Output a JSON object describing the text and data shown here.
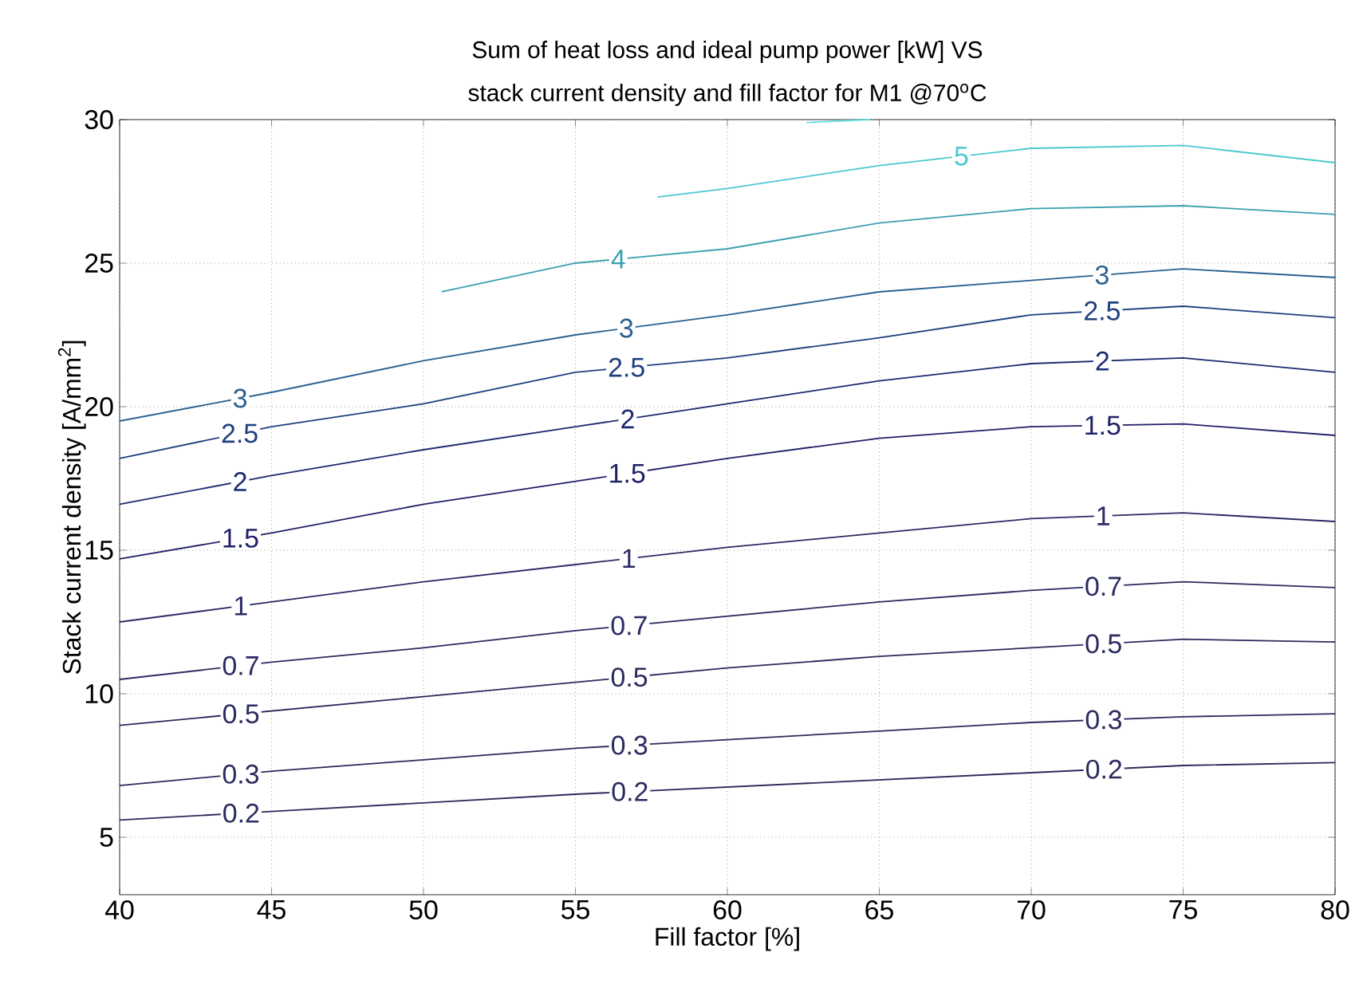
{
  "chart_data": {
    "type": "line",
    "title": "Sum of heat loss and ideal pump power [kW] VS",
    "subtitle": "stack current density and fill factor for M1 @70$^{o}$C",
    "xlabel": "Fill factor [%]",
    "ylabel": "Stack current density [A/mm$^{2}$]",
    "xlim": [
      40,
      80
    ],
    "ylim": [
      3,
      30
    ],
    "xticks": [
      40,
      45,
      50,
      55,
      60,
      65,
      70,
      75,
      80
    ],
    "yticks": [
      5,
      10,
      15,
      20,
      25,
      30
    ],
    "grid": true,
    "marker": "none",
    "line_style": "solid",
    "x": [
      40,
      45,
      50,
      55,
      60,
      65,
      70,
      75,
      80
    ],
    "series": [
      {
        "name": "0.2",
        "color": "#2b2b5e",
        "values": [
          5.6,
          5.9,
          6.2,
          6.5,
          6.75,
          7.0,
          7.25,
          7.5,
          7.6
        ]
      },
      {
        "name": "0.3",
        "color": "#2b2b5e",
        "values": [
          6.8,
          7.3,
          7.7,
          8.1,
          8.4,
          8.7,
          9.0,
          9.2,
          9.3
        ]
      },
      {
        "name": "0.5",
        "color": "#2b2b60",
        "values": [
          8.9,
          9.4,
          9.9,
          10.4,
          10.9,
          11.3,
          11.6,
          11.9,
          11.8
        ]
      },
      {
        "name": "0.7",
        "color": "#2b2b62",
        "values": [
          10.5,
          11.1,
          11.6,
          12.2,
          12.7,
          13.2,
          13.6,
          13.9,
          13.7
        ]
      },
      {
        "name": "1",
        "color": "#2a2a66",
        "values": [
          12.5,
          13.2,
          13.9,
          14.5,
          15.1,
          15.6,
          16.1,
          16.3,
          16.0
        ]
      },
      {
        "name": "1.5",
        "color": "#202068",
        "values": [
          14.7,
          15.6,
          16.6,
          17.4,
          18.2,
          18.9,
          19.3,
          19.4,
          19.0
        ]
      },
      {
        "name": "2",
        "color": "#1c2a70",
        "values": [
          16.6,
          17.6,
          18.5,
          19.3,
          20.1,
          20.9,
          21.5,
          21.7,
          21.2
        ]
      },
      {
        "name": "2.5",
        "color": "#1f3f7f",
        "values": [
          18.2,
          19.3,
          20.1,
          21.2,
          21.7,
          22.4,
          23.2,
          23.5,
          23.1
        ]
      },
      {
        "name": "3",
        "color": "#2a6090",
        "values": [
          19.5,
          20.5,
          21.6,
          22.5,
          23.2,
          24.0,
          24.4,
          24.8,
          24.5
        ]
      },
      {
        "name": "4",
        "color": "#3aa0b0",
        "x": [
          50.6,
          55,
          60,
          65,
          70,
          75,
          80
        ],
        "values": [
          24.0,
          25.0,
          25.5,
          26.4,
          26.9,
          27.0,
          26.7
        ]
      },
      {
        "name": "5",
        "color": "#4cc8d0",
        "x": [
          57.7,
          60,
          65,
          70,
          75,
          80
        ],
        "values": [
          27.3,
          27.6,
          28.4,
          29.0,
          29.1,
          28.5
        ]
      },
      {
        "color": "#5fe0e0",
        "x": [
          62.6,
          64.7
        ],
        "values": [
          29.9,
          30
        ]
      }
    ]
  }
}
